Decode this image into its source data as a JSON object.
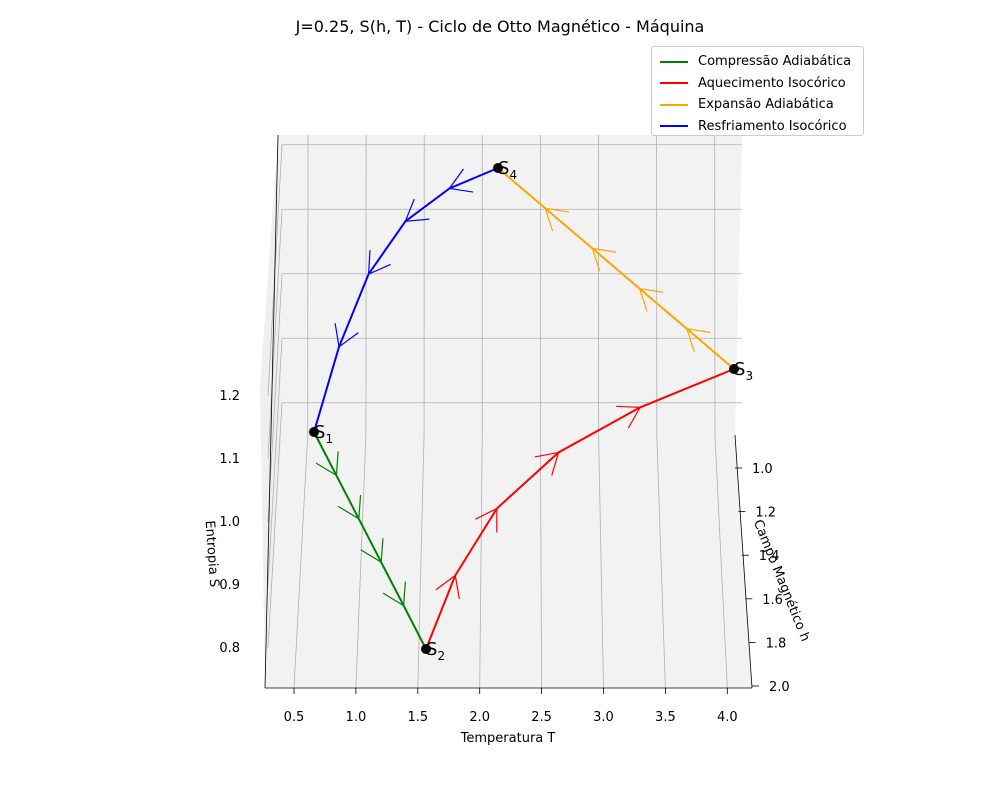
{
  "chart_data": {
    "type": "line",
    "title": "J=0.25, S(h, T) - Ciclo de Otto Magnético - Máquina",
    "xlabel": "Temperatura T",
    "ylabel": "Campo Magnético h",
    "zlabel": "Entropia S",
    "x_ticks": [
      "0.5",
      "1.0",
      "1.5",
      "2.0",
      "2.5",
      "3.0",
      "3.5",
      "4.0"
    ],
    "y_ticks": [
      "1.0",
      "1.2",
      "1.4",
      "1.6",
      "1.8",
      "2.0"
    ],
    "z_ticks": [
      "0.8",
      "0.9",
      "1.0",
      "1.1",
      "1.2"
    ],
    "legend_position": "top-right",
    "series": [
      {
        "name": "Compressão Adiabática",
        "color": "#008000",
        "points": [
          [
            0.65,
            1.0,
            1.15
          ],
          [
            0.8,
            1.2,
            1.13
          ],
          [
            1.0,
            1.4,
            1.09
          ],
          [
            1.2,
            1.6,
            1.03
          ],
          [
            1.4,
            1.8,
            0.95
          ],
          [
            1.55,
            2.0,
            0.85
          ]
        ]
      },
      {
        "name": "Aquecimento Isocórico",
        "color": "#ff0000",
        "points": [
          [
            1.55,
            2.0,
            0.85
          ],
          [
            2.0,
            2.0,
            1.0
          ],
          [
            2.6,
            2.0,
            1.1
          ],
          [
            3.1,
            2.0,
            1.16
          ],
          [
            3.6,
            2.0,
            1.2
          ],
          [
            4.1,
            2.0,
            1.22
          ]
        ]
      },
      {
        "name": "Expansão Adiabática",
        "color": "#ffa500",
        "points": [
          [
            4.1,
            2.0,
            1.22
          ],
          [
            3.6,
            1.8,
            1.23
          ],
          [
            3.1,
            1.6,
            1.24
          ],
          [
            2.7,
            1.4,
            1.25
          ],
          [
            2.3,
            1.2,
            1.27
          ],
          [
            2.05,
            1.0,
            1.29
          ]
        ]
      },
      {
        "name": "Resfriamento Isocórico",
        "color": "#0000ff",
        "points": [
          [
            2.05,
            1.0,
            1.29
          ],
          [
            1.7,
            1.0,
            1.27
          ],
          [
            1.35,
            1.0,
            1.23
          ],
          [
            1.05,
            1.0,
            1.19
          ],
          [
            0.85,
            1.0,
            1.16
          ],
          [
            0.65,
            1.0,
            1.15
          ]
        ]
      }
    ],
    "state_points": [
      "S_1",
      "S_2",
      "S_3",
      "S_4"
    ]
  }
}
